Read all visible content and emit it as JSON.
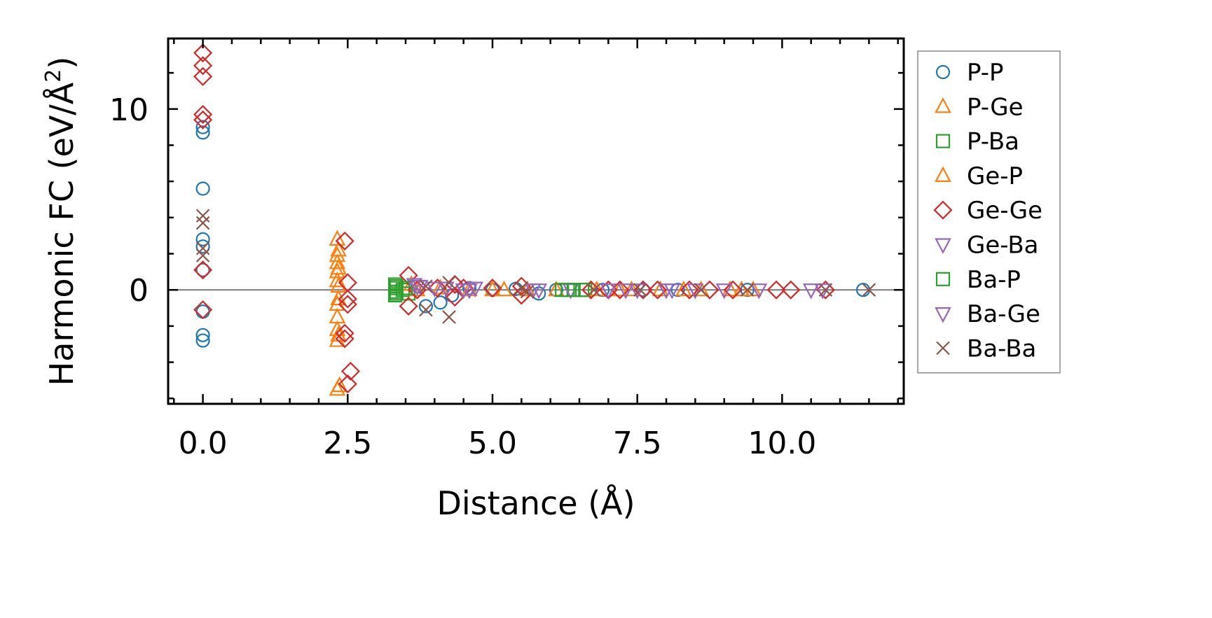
{
  "chart_data": {
    "type": "scatter",
    "title": "",
    "xlabel": "Distance (Å)",
    "ylabel_main": "Harmonic FC (eV/Å",
    "ylabel_sup": "2",
    "ylabel_end": ")",
    "xlim": [
      -0.6,
      12.1
    ],
    "ylim": [
      -6.3,
      13.9
    ],
    "xticks": [
      0.0,
      2.5,
      5.0,
      7.5,
      10.0
    ],
    "xtick_labels": [
      "0.0",
      "2.5",
      "5.0",
      "7.5",
      "10.0"
    ],
    "yticks": [
      0,
      10
    ],
    "ytick_labels": [
      "0",
      "10"
    ],
    "x_minor_step": 0.5,
    "y_minor_step": 2,
    "zero_line": true,
    "legend_position": "right-outside",
    "series": [
      {
        "name": "P-P",
        "marker": "circle",
        "color": "#1f77b4",
        "points": [
          [
            0,
            8.7
          ],
          [
            0,
            9.0
          ],
          [
            0,
            5.6
          ],
          [
            0,
            2.8
          ],
          [
            0,
            2.4
          ],
          [
            0,
            1.1
          ],
          [
            0,
            -1.2
          ],
          [
            0,
            -2.5
          ],
          [
            0,
            -2.8
          ],
          [
            3.85,
            -0.9
          ],
          [
            4.1,
            -0.7
          ],
          [
            4.3,
            -0.3
          ],
          [
            4.6,
            0.1
          ],
          [
            5.0,
            0.0
          ],
          [
            5.4,
            0.05
          ],
          [
            5.8,
            -0.2
          ],
          [
            6.1,
            0.0
          ],
          [
            6.9,
            0.0
          ],
          [
            7.6,
            0.0
          ],
          [
            8.2,
            0.0
          ],
          [
            9.4,
            0.0
          ],
          [
            11.4,
            0.0
          ]
        ]
      },
      {
        "name": "P-Ge",
        "marker": "triangle-up",
        "color": "#ff7f0e",
        "points": [
          [
            2.32,
            2.8
          ],
          [
            2.32,
            1.9
          ],
          [
            2.32,
            1.5
          ],
          [
            2.32,
            1.0
          ],
          [
            2.32,
            0.5
          ],
          [
            2.32,
            -0.8
          ],
          [
            2.32,
            -1.5
          ],
          [
            2.32,
            -2.2
          ],
          [
            2.32,
            -2.8
          ],
          [
            2.32,
            -5.5
          ],
          [
            3.6,
            0.3
          ],
          [
            4.1,
            0.1
          ],
          [
            5.0,
            0.0
          ],
          [
            5.6,
            0.0
          ],
          [
            6.1,
            0.0
          ],
          [
            7.2,
            0.0
          ],
          [
            7.9,
            0.0
          ],
          [
            8.6,
            0.0
          ],
          [
            9.1,
            0.0
          ],
          [
            9.5,
            0.0
          ]
        ]
      },
      {
        "name": "P-Ba",
        "marker": "square",
        "color": "#2ca02c",
        "points": [
          [
            3.32,
            0.3
          ],
          [
            3.32,
            0.1
          ],
          [
            3.32,
            -0.1
          ],
          [
            3.32,
            -0.3
          ],
          [
            3.45,
            0.0
          ],
          [
            3.55,
            -0.2
          ],
          [
            6.2,
            0.0
          ],
          [
            6.4,
            0.0
          ],
          [
            6.6,
            0.0
          ]
        ]
      },
      {
        "name": "Ge-P",
        "marker": "triangle-up",
        "color": "#ff7f0e",
        "points": [
          [
            2.34,
            2.2
          ],
          [
            2.34,
            1.2
          ],
          [
            2.34,
            0.2
          ],
          [
            2.34,
            -0.5
          ],
          [
            2.34,
            -2.5
          ],
          [
            2.36,
            -5.3
          ],
          [
            3.7,
            0.0
          ],
          [
            4.6,
            0.0
          ],
          [
            5.2,
            0.0
          ],
          [
            6.8,
            0.0
          ],
          [
            7.4,
            0.0
          ],
          [
            8.3,
            0.0
          ],
          [
            9.3,
            0.0
          ]
        ]
      },
      {
        "name": "Ge-Ge",
        "marker": "diamond",
        "color": "#d62728",
        "points": [
          [
            0,
            13.1
          ],
          [
            0,
            12.4
          ],
          [
            0,
            11.8
          ],
          [
            0,
            9.7
          ],
          [
            0,
            9.4
          ],
          [
            0,
            1.1
          ],
          [
            0,
            -1.1
          ],
          [
            2.45,
            2.7
          ],
          [
            2.5,
            0.4
          ],
          [
            2.5,
            -0.5
          ],
          [
            2.5,
            -0.8
          ],
          [
            2.45,
            -2.4
          ],
          [
            2.45,
            -2.7
          ],
          [
            2.55,
            -4.5
          ],
          [
            2.5,
            -5.2
          ],
          [
            3.55,
            0.8
          ],
          [
            3.55,
            -0.9
          ],
          [
            3.7,
            0.0
          ],
          [
            4.05,
            0.1
          ],
          [
            4.35,
            0.3
          ],
          [
            4.35,
            -0.4
          ],
          [
            4.5,
            0.1
          ],
          [
            5.0,
            0.1
          ],
          [
            5.5,
            0.2
          ],
          [
            5.5,
            -0.3
          ],
          [
            6.7,
            0.0
          ],
          [
            7.0,
            0.0
          ],
          [
            7.2,
            0.0
          ],
          [
            7.6,
            0.0
          ],
          [
            7.85,
            0.0
          ],
          [
            8.4,
            0.0
          ],
          [
            8.75,
            0.0
          ],
          [
            9.15,
            0.0
          ],
          [
            9.9,
            0.0
          ],
          [
            10.15,
            0.0
          ],
          [
            10.75,
            0.0
          ]
        ]
      },
      {
        "name": "Ge-Ba",
        "marker": "triangle-down",
        "color": "#9467bd",
        "points": [
          [
            3.65,
            0.3
          ],
          [
            3.75,
            0.2
          ],
          [
            4.0,
            0.1
          ],
          [
            4.5,
            0.0
          ],
          [
            4.7,
            0.1
          ],
          [
            5.7,
            0.0
          ],
          [
            6.35,
            0.0
          ],
          [
            7.0,
            0.0
          ],
          [
            7.5,
            0.0
          ],
          [
            8.1,
            0.0
          ],
          [
            8.5,
            0.0
          ],
          [
            9.6,
            0.0
          ],
          [
            10.5,
            0.0
          ]
        ]
      },
      {
        "name": "Ba-P",
        "marker": "square",
        "color": "#2ca02c",
        "points": [
          [
            3.34,
            0.2
          ],
          [
            3.34,
            -0.2
          ],
          [
            3.5,
            0.1
          ],
          [
            6.3,
            0.0
          ],
          [
            6.55,
            0.0
          ]
        ]
      },
      {
        "name": "Ba-Ge",
        "marker": "triangle-down",
        "color": "#9467bd",
        "points": [
          [
            3.7,
            0.2
          ],
          [
            4.2,
            0.1
          ],
          [
            4.6,
            0.0
          ],
          [
            5.8,
            0.0
          ],
          [
            7.3,
            0.0
          ],
          [
            8.0,
            0.0
          ],
          [
            9.0,
            0.0
          ],
          [
            10.7,
            0.0
          ]
        ]
      },
      {
        "name": "Ba-Ba",
        "marker": "x",
        "color": "#8c564b",
        "points": [
          [
            0,
            4.1
          ],
          [
            0,
            3.7
          ],
          [
            0,
            2.3
          ],
          [
            0,
            1.9
          ],
          [
            3.85,
            0.2
          ],
          [
            3.85,
            -1.1
          ],
          [
            4.25,
            0.4
          ],
          [
            4.25,
            -1.5
          ],
          [
            5.5,
            0.1
          ],
          [
            5.6,
            -0.1
          ],
          [
            6.75,
            0.0
          ],
          [
            7.55,
            0.0
          ],
          [
            8.6,
            0.0
          ],
          [
            9.4,
            0.0
          ],
          [
            10.75,
            0.0
          ],
          [
            11.5,
            0.0
          ]
        ]
      }
    ]
  }
}
